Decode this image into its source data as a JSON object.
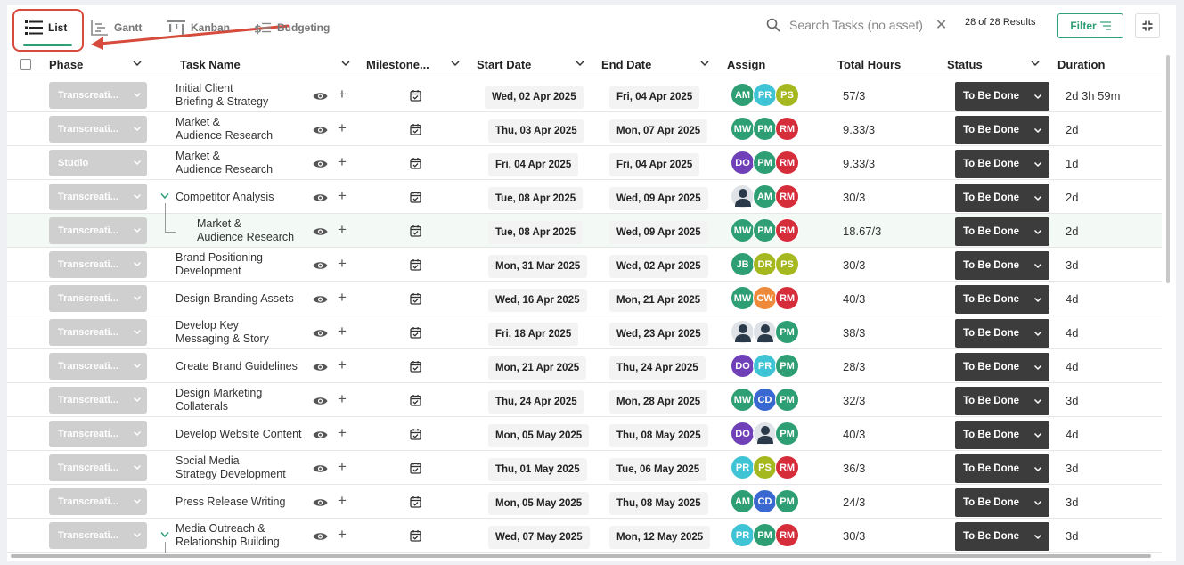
{
  "toolbar": {
    "tabs": [
      {
        "label": "List",
        "icon": "list-icon",
        "active": true
      },
      {
        "label": "Gantt",
        "icon": "gantt-icon",
        "active": false
      },
      {
        "label": "Kanban",
        "icon": "kanban-icon",
        "active": false
      },
      {
        "label": "Budgeting",
        "icon": "budgeting-icon",
        "active": false
      }
    ],
    "search_placeholder": "Search Tasks (no asset)",
    "results": "28 of 28 Results",
    "filter_label": "Filter"
  },
  "columns": {
    "phase": "Phase",
    "task_name": "Task Name",
    "milestone": "Milestone...",
    "start_date": "Start Date",
    "end_date": "End Date",
    "assign": "Assign",
    "total_hours": "Total Hours",
    "status": "Status",
    "duration": "Duration"
  },
  "colors": {
    "accent": "#2e9e74",
    "annotation": "#d64b3b",
    "status_bg": "#3c3c3c",
    "phase_bg": "#cfcfcf",
    "avatar": {
      "AM": "#2e9e74",
      "PR": "#3fc4d6",
      "PS": "#a6b820",
      "MW": "#2e9e74",
      "PM": "#2e9e74",
      "RM": "#d62d3a",
      "DO": "#7040b8",
      "JB": "#2e9e74",
      "DR": "#a6b820",
      "CW": "#ef8a3a",
      "CD": "#3868d0"
    }
  },
  "rows": [
    {
      "phase": "Transcreati...",
      "task": [
        "Initial Client",
        "Briefing & Strategy"
      ],
      "start": "Wed, 02 Apr 2025",
      "end": "Fri, 04 Apr 2025",
      "assign": [
        "AM",
        "PR",
        "PS"
      ],
      "hours": "57/3",
      "status": "To Be Done",
      "duration": "2d 3h 59m"
    },
    {
      "phase": "Transcreati...",
      "task": [
        "Market &",
        "Audience Research"
      ],
      "start": "Thu, 03 Apr 2025",
      "end": "Mon, 07 Apr 2025",
      "assign": [
        "MW",
        "PM",
        "RM"
      ],
      "hours": "9.33/3",
      "status": "To Be Done",
      "duration": "2d"
    },
    {
      "phase": "Studio",
      "task": [
        "Market &",
        "Audience Research"
      ],
      "start": "Fri, 04 Apr 2025",
      "end": "Fri, 04 Apr 2025",
      "assign": [
        "DO",
        "PM",
        "RM"
      ],
      "hours": "9.33/3",
      "status": "To Be Done",
      "duration": "1d"
    },
    {
      "phase": "Transcreati...",
      "task": [
        "Competitor Analysis"
      ],
      "start": "Tue, 08 Apr 2025",
      "end": "Wed, 09 Apr 2025",
      "assign": [
        "person",
        "AM",
        "RM"
      ],
      "hours": "30/3",
      "status": "To Be Done",
      "duration": "2d",
      "expanded": true
    },
    {
      "phase": "Transcreati...",
      "task": [
        "Market &",
        "Audience Research"
      ],
      "start": "Tue, 08 Apr 2025",
      "end": "Wed, 09 Apr 2025",
      "assign": [
        "MW",
        "PM",
        "RM"
      ],
      "hours": "18.67/3",
      "status": "To Be Done",
      "duration": "2d",
      "child": true
    },
    {
      "phase": "Transcreati...",
      "task": [
        "Brand Positioning",
        "Development"
      ],
      "start": "Mon, 31 Mar 2025",
      "end": "Wed, 02 Apr 2025",
      "assign": [
        "JB",
        "DR",
        "PS"
      ],
      "hours": "30/3",
      "status": "To Be Done",
      "duration": "3d"
    },
    {
      "phase": "Transcreati...",
      "task": [
        "Design Branding Assets"
      ],
      "start": "Wed, 16 Apr 2025",
      "end": "Mon, 21 Apr 2025",
      "assign": [
        "MW",
        "CW",
        "RM"
      ],
      "hours": "40/3",
      "status": "To Be Done",
      "duration": "4d"
    },
    {
      "phase": "Transcreati...",
      "task": [
        "Develop Key",
        "Messaging & Story"
      ],
      "start": "Fri, 18 Apr 2025",
      "end": "Wed, 23 Apr 2025",
      "assign": [
        "person",
        "person",
        "PM"
      ],
      "hours": "38/3",
      "status": "To Be Done",
      "duration": "4d"
    },
    {
      "phase": "Transcreati...",
      "task": [
        "Create Brand Guidelines"
      ],
      "start": "Mon, 21 Apr 2025",
      "end": "Thu, 24 Apr 2025",
      "assign": [
        "DO",
        "PR",
        "PM"
      ],
      "hours": "28/3",
      "status": "To Be Done",
      "duration": "4d"
    },
    {
      "phase": "Transcreati...",
      "task": [
        "Design Marketing",
        "Collaterals"
      ],
      "start": "Thu, 24 Apr 2025",
      "end": "Mon, 28 Apr 2025",
      "assign": [
        "MW",
        "CD",
        "PM"
      ],
      "hours": "32/3",
      "status": "To Be Done",
      "duration": "3d"
    },
    {
      "phase": "Transcreati...",
      "task": [
        "Develop Website Content"
      ],
      "start": "Mon, 05 May 2025",
      "end": "Thu, 08 May 2025",
      "assign": [
        "DO",
        "person",
        "PM"
      ],
      "hours": "40/3",
      "status": "To Be Done",
      "duration": "4d"
    },
    {
      "phase": "Transcreati...",
      "task": [
        "Social Media",
        "Strategy Development"
      ],
      "start": "Thu, 01 May 2025",
      "end": "Tue, 06 May 2025",
      "assign": [
        "PR",
        "PS",
        "RM"
      ],
      "hours": "36/3",
      "status": "To Be Done",
      "duration": "3d"
    },
    {
      "phase": "Transcreati...",
      "task": [
        "Press Release Writing"
      ],
      "start": "Mon, 05 May 2025",
      "end": "Thu, 08 May 2025",
      "assign": [
        "AM",
        "CD",
        "PM"
      ],
      "hours": "24/3",
      "status": "To Be Done",
      "duration": "3d"
    },
    {
      "phase": "Transcreati...",
      "task": [
        "Media Outreach &",
        "Relationship Building"
      ],
      "start": "Wed, 07 May 2025",
      "end": "Mon, 12 May 2025",
      "assign": [
        "PR",
        "PM",
        "RM"
      ],
      "hours": "30/3",
      "status": "To Be Done",
      "duration": "3d",
      "expanded": true
    }
  ]
}
